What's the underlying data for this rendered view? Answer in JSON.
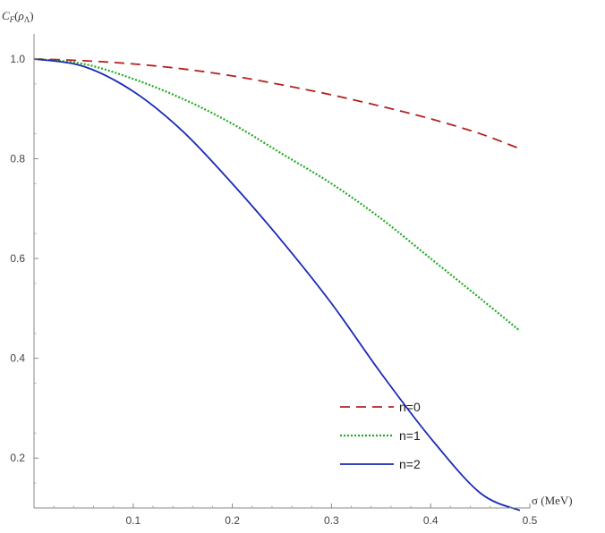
{
  "chart_data": {
    "type": "line",
    "title": "",
    "xlabel": "σ (MeV)",
    "ylabel": "C_F(ρ_Λ)",
    "xlim": [
      0,
      0.5
    ],
    "ylim": [
      0.1,
      1.05
    ],
    "xticks": [
      0.1,
      0.2,
      0.3,
      0.4,
      0.5
    ],
    "yticks": [
      0.2,
      0.4,
      0.6,
      0.8,
      1.0
    ],
    "xtick_labels": [
      "0.1",
      "0.2",
      "0.3",
      "0.4",
      "0.5"
    ],
    "ytick_labels": [
      "0.2",
      "0.4",
      "0.6",
      "0.8",
      "1.0"
    ],
    "grid": false,
    "legend_position": "bottom-center",
    "series": [
      {
        "name": "n=0",
        "color": "#b22222",
        "style": "dashed",
        "x": [
          0,
          0.05,
          0.1,
          0.15,
          0.2,
          0.25,
          0.3,
          0.35,
          0.4,
          0.45,
          0.49
        ],
        "y": [
          1.0,
          0.9965,
          0.99,
          0.98,
          0.966,
          0.948,
          0.928,
          0.905,
          0.88,
          0.85,
          0.82
        ]
      },
      {
        "name": "n=1",
        "color": "#22aa22",
        "style": "dotted",
        "x": [
          0,
          0.05,
          0.1,
          0.15,
          0.2,
          0.25,
          0.3,
          0.35,
          0.4,
          0.45,
          0.49
        ],
        "y": [
          1.0,
          0.99,
          0.96,
          0.92,
          0.87,
          0.81,
          0.75,
          0.68,
          0.6,
          0.52,
          0.455
        ]
      },
      {
        "name": "n=2",
        "color": "#1a2bb5",
        "style": "solid",
        "x": [
          0,
          0.05,
          0.1,
          0.15,
          0.2,
          0.25,
          0.3,
          0.35,
          0.4,
          0.45,
          0.49
        ],
        "y": [
          1.0,
          0.985,
          0.935,
          0.855,
          0.75,
          0.635,
          0.51,
          0.37,
          0.24,
          0.13,
          0.095
        ]
      }
    ]
  }
}
